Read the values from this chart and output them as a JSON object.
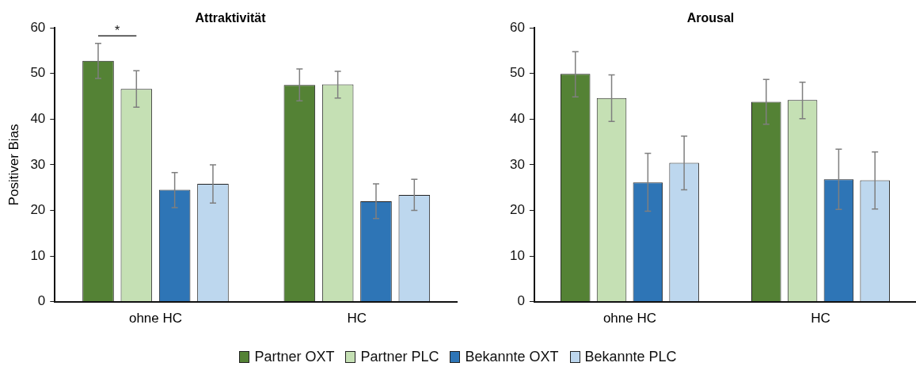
{
  "chart_data": [
    {
      "type": "bar",
      "title": "Attraktivität",
      "ylabel": "Positiver Bias",
      "categories": [
        "ohne HC",
        "HC"
      ],
      "ylim": [
        0,
        60
      ],
      "yticks": [
        0,
        10,
        20,
        30,
        40,
        50,
        60
      ],
      "grid": false,
      "legend": "bottom",
      "annotations": [
        "*"
      ],
      "series": [
        {
          "name": "Partner OXT",
          "color": "#548235",
          "values": [
            52.8,
            47.5
          ],
          "errors": [
            [
              48.9,
              56.6
            ],
            [
              44.0,
              51.0
            ]
          ]
        },
        {
          "name": "Partner PLC",
          "color": "#c5e0b4",
          "values": [
            46.6,
            47.6
          ],
          "errors": [
            [
              42.6,
              50.6
            ],
            [
              44.6,
              50.5
            ]
          ]
        },
        {
          "name": "Bekannte OXT",
          "color": "#2e75b6",
          "values": [
            24.5,
            22.0
          ],
          "errors": [
            [
              20.6,
              28.3
            ],
            [
              18.2,
              25.8
            ]
          ]
        },
        {
          "name": "Bekannte PLC",
          "color": "#bdd7ee",
          "values": [
            25.8,
            23.4
          ],
          "errors": [
            [
              21.6,
              30.0
            ],
            [
              20.0,
              26.8
            ]
          ]
        }
      ]
    },
    {
      "type": "bar",
      "title": "Arousal",
      "categories": [
        "ohne HC",
        "HC"
      ],
      "ylim": [
        0,
        60
      ],
      "yticks": [
        0,
        10,
        20,
        30,
        40,
        50,
        60
      ],
      "grid": false,
      "series": [
        {
          "color": "#548235",
          "values": [
            49.9,
            43.8
          ],
          "errors": [
            [
              44.9,
              54.8
            ],
            [
              38.9,
              48.7
            ]
          ]
        },
        {
          "color": "#c5e0b4",
          "values": [
            44.6,
            44.2
          ],
          "errors": [
            [
              39.5,
              49.7
            ],
            [
              40.1,
              48.1
            ]
          ]
        },
        {
          "color": "#2e75b6",
          "values": [
            26.1,
            26.8
          ],
          "errors": [
            [
              19.8,
              32.5
            ],
            [
              20.2,
              33.4
            ]
          ]
        },
        {
          "color": "#bdd7ee",
          "values": [
            30.4,
            26.6
          ],
          "errors": [
            [
              24.5,
              36.3
            ],
            [
              20.3,
              32.8
            ]
          ]
        }
      ]
    }
  ]
}
